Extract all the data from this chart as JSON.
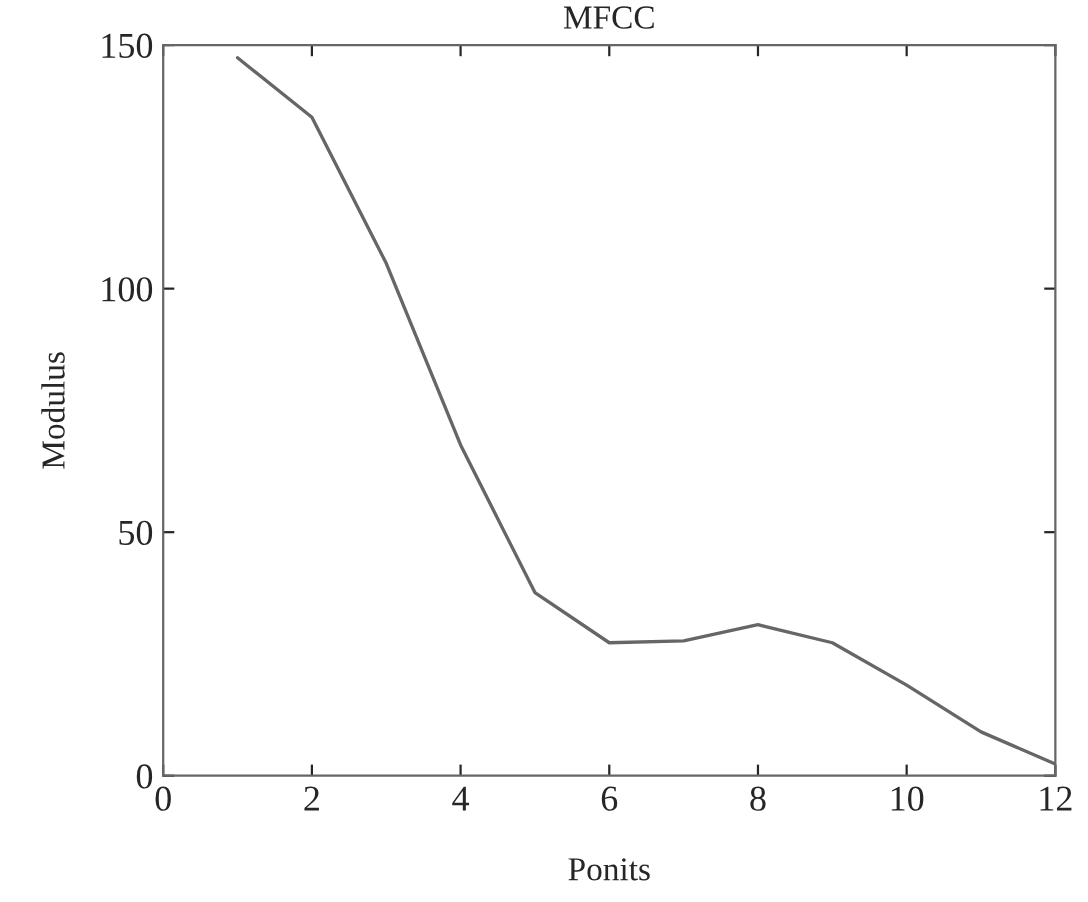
{
  "chart_data": {
    "type": "line",
    "title": "MFCC",
    "xlabel": "Ponits",
    "ylabel": "Modulus",
    "x": [
      1,
      2,
      3,
      4,
      5,
      6,
      7,
      8,
      9,
      10,
      11,
      12
    ],
    "series": [
      {
        "color": "#666666",
        "values": [
          147.4,
          135.2,
          105.2,
          67.9,
          37.6,
          27.3,
          27.7,
          31.0,
          27.3,
          18.6,
          9.0,
          2.4
        ]
      }
    ],
    "xlim": [
      0,
      12
    ],
    "xticks": [
      0,
      2,
      4,
      6,
      8,
      10,
      12
    ],
    "ylim": [
      0,
      150
    ],
    "yticks": [
      0,
      50,
      100,
      150
    ],
    "grid": false,
    "marker": "none",
    "line_style": "solid"
  }
}
